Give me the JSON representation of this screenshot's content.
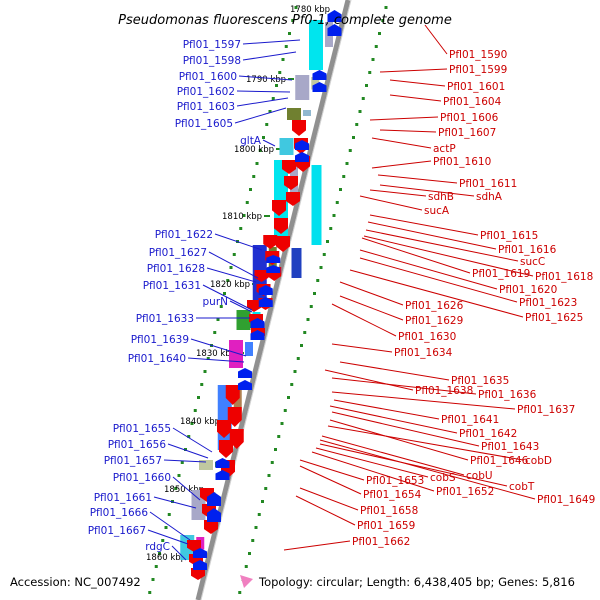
{
  "title": "Pseudomonas fluorescens Pf0-1, complete genome",
  "top_scale_label": "1780 kbp",
  "accession": "Accession: NC_007492",
  "topology": "Topology: circular; Length: 6,438,405 bp; Genes: 5,816",
  "colors": {
    "reverse_label": "#1a1acc",
    "forward_label": "#cc0000",
    "backbone": "#909090",
    "tick": "#228822"
  },
  "scale_labels": [
    "1790 kbp",
    "1800 kbp",
    "1810 kbp",
    "1820 kbp",
    "1830 kbp",
    "1840 kbp",
    "1850 kbp",
    "1860 kbp"
  ],
  "left_labels": [
    "Pfl01_1597",
    "Pfl01_1598",
    "Pfl01_1600",
    "Pfl01_1602",
    "Pfl01_1603",
    "Pfl01_1605",
    "gltA",
    "Pfl01_1622",
    "Pfl01_1627",
    "Pfl01_1628",
    "Pfl01_1631",
    "purN",
    "Pfl01_1633",
    "Pfl01_1639",
    "Pfl01_1640",
    "Pfl01_1655",
    "Pfl01_1656",
    "Pfl01_1657",
    "Pfl01_1660",
    "Pfl01_1661",
    "Pfl01_1666",
    "Pfl01_1667",
    "rdgC"
  ],
  "right_labels": [
    "Pfl01_1590",
    "Pfl01_1599",
    "Pfl01_1601",
    "Pfl01_1604",
    "Pfl01_1606",
    "Pfl01_1607",
    "actP",
    "Pfl01_1610",
    "Pfl01_1611",
    "sdhB",
    "sdhA",
    "sucA",
    "Pfl01_1615",
    "Pfl01_1616",
    "sucC",
    "Pfl01_1619",
    "Pfl01_1618",
    "Pfl01_1620",
    "Pfl01_1623",
    "Pfl01_1626",
    "Pfl01_1625",
    "Pfl01_1629",
    "Pfl01_1630",
    "Pfl01_1634",
    "Pfl01_1635",
    "Pfl01_1638",
    "Pfl01_1636",
    "Pfl01_1637",
    "Pfl01_1641",
    "Pfl01_1642",
    "Pfl01_1643",
    "Pfl01_1646",
    "cobD",
    "cobU",
    "Pfl01_1653",
    "cobS",
    "cobT",
    "Pfl01_1654",
    "Pfl01_1652",
    "Pfl01_1649",
    "Pfl01_1658",
    "Pfl01_1659",
    "Pfl01_1662"
  ]
}
